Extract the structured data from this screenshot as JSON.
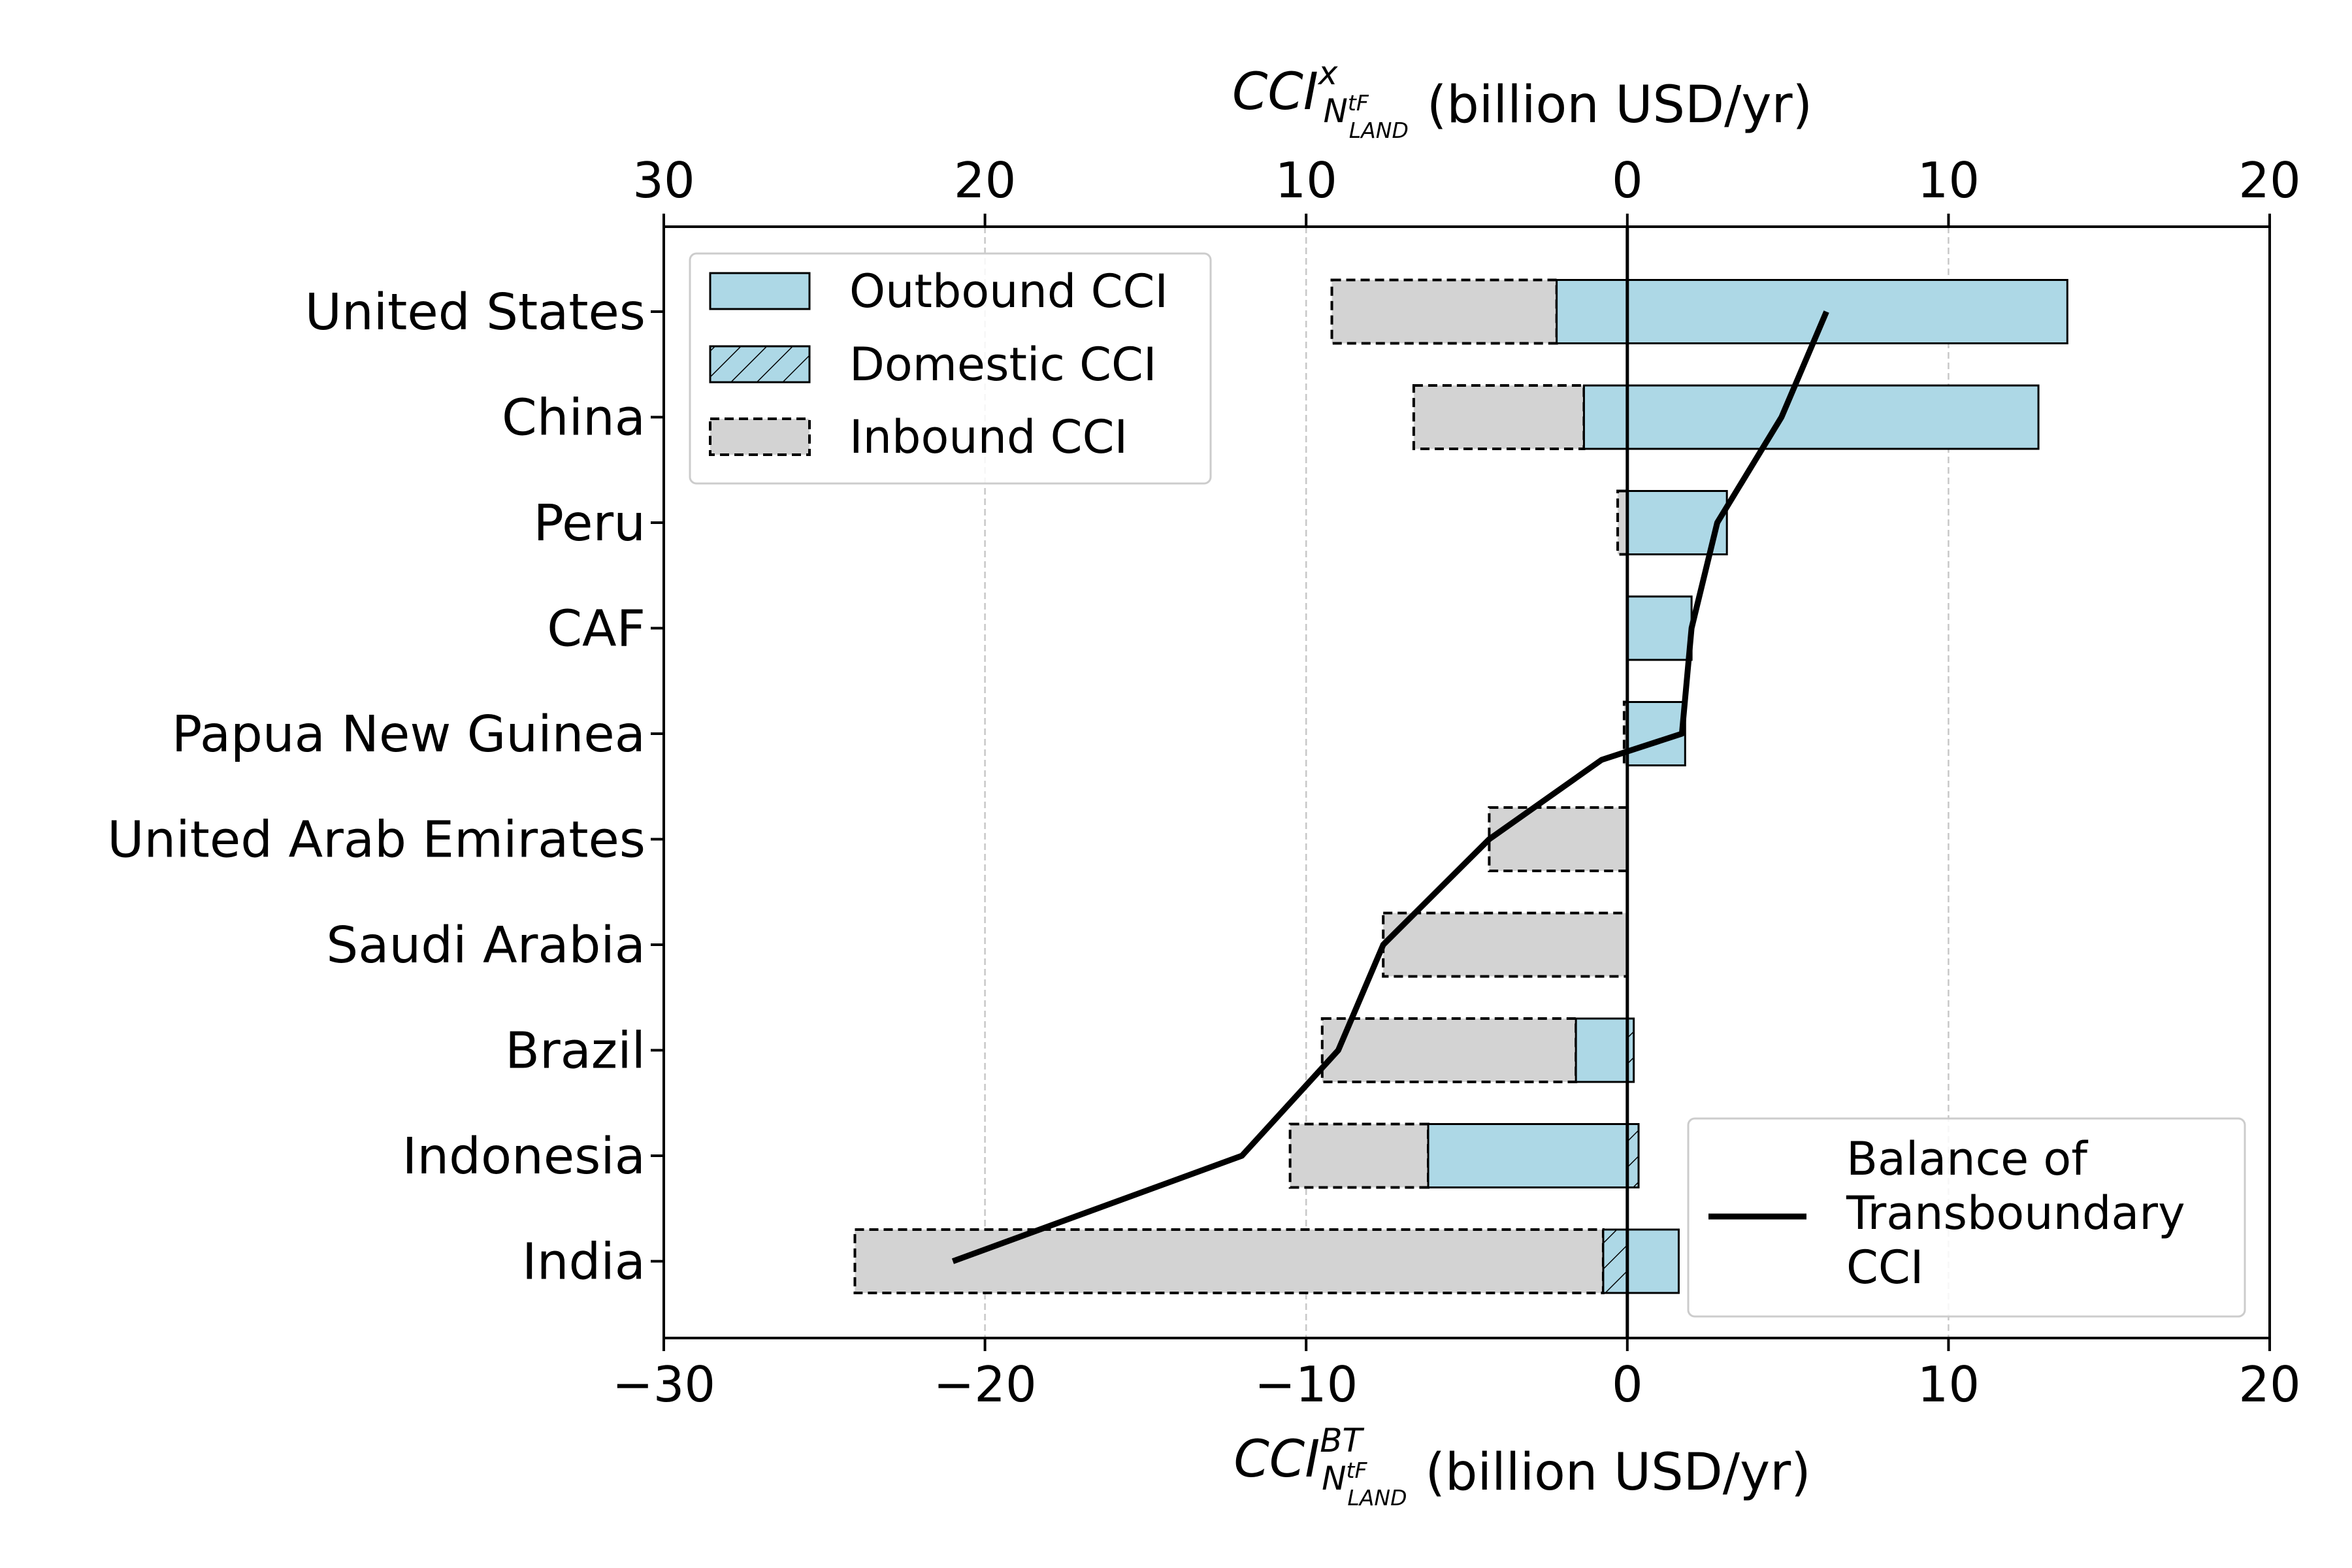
{
  "chart_data": {
    "type": "bar",
    "orientation": "horizontal",
    "categories": [
      "United States",
      "China",
      "Peru",
      "CAF",
      "Papua New Guinea",
      "United Arab Emirates",
      "Saudi Arabia",
      "Brazil",
      "Indonesia",
      "India"
    ],
    "series": [
      {
        "name": "Outbound CCI",
        "values": [
          13.7,
          12.8,
          3.1,
          2.0,
          1.8,
          0,
          0,
          0.2,
          0.35,
          1.6
        ],
        "color": "#add8e6",
        "style": "solid"
      },
      {
        "name": "Domestic CCI",
        "values": [
          -2.2,
          -1.35,
          0,
          0,
          0,
          0,
          0,
          -1.6,
          -6.2,
          -0.75
        ],
        "color": "#add8e6",
        "style": "hatched"
      },
      {
        "name": "Inbound CCI",
        "values": [
          -7.0,
          -5.3,
          -0.3,
          0,
          -0.1,
          -4.3,
          -7.6,
          -7.9,
          -4.3,
          -23.3
        ],
        "color": "#d3d3d3",
        "style": "dashed"
      }
    ],
    "domestic_positive_part": [
      0,
      0,
      0,
      0,
      0,
      0,
      0,
      0.25,
      0.35,
      0
    ],
    "balance_series": {
      "name": "Balance of Transboundary CCI",
      "name_lines": [
        "Balance of",
        "Transboundary",
        "CCI"
      ],
      "values": [
        6.2,
        4.8,
        2.8,
        2.0,
        1.7,
        -4.3,
        -7.6,
        -9.0,
        -12.0,
        -21.0
      ],
      "zero_crossing_value": -0.8
    },
    "xlim": [
      -30,
      20
    ],
    "bottom_ticks": [
      "−30",
      "−20",
      "−10",
      "0",
      "10",
      "20"
    ],
    "top_ticks": [
      "30",
      "20",
      "10",
      "0",
      "10",
      "20"
    ],
    "tick_values": [
      -30,
      -20,
      -10,
      0,
      10,
      20
    ],
    "xlabel_top": {
      "base": "CCI",
      "sup": "x",
      "sub": "N",
      "subsup": "tF",
      "subsub": "LAND",
      "unit": "(billion USD/yr)"
    },
    "xlabel_bottom": {
      "base": "CCI",
      "sup": "BT",
      "sub": "N",
      "subsup": "tF",
      "subsub": "LAND",
      "unit": "(billion USD/yr)"
    },
    "grid": "vertical dashed",
    "legend_bars_placement": "top-left",
    "legend_line_placement": "bottom-right",
    "colors": {
      "outbound": "#add8e6",
      "inbound": "#d3d3d3",
      "line": "#000000"
    }
  }
}
